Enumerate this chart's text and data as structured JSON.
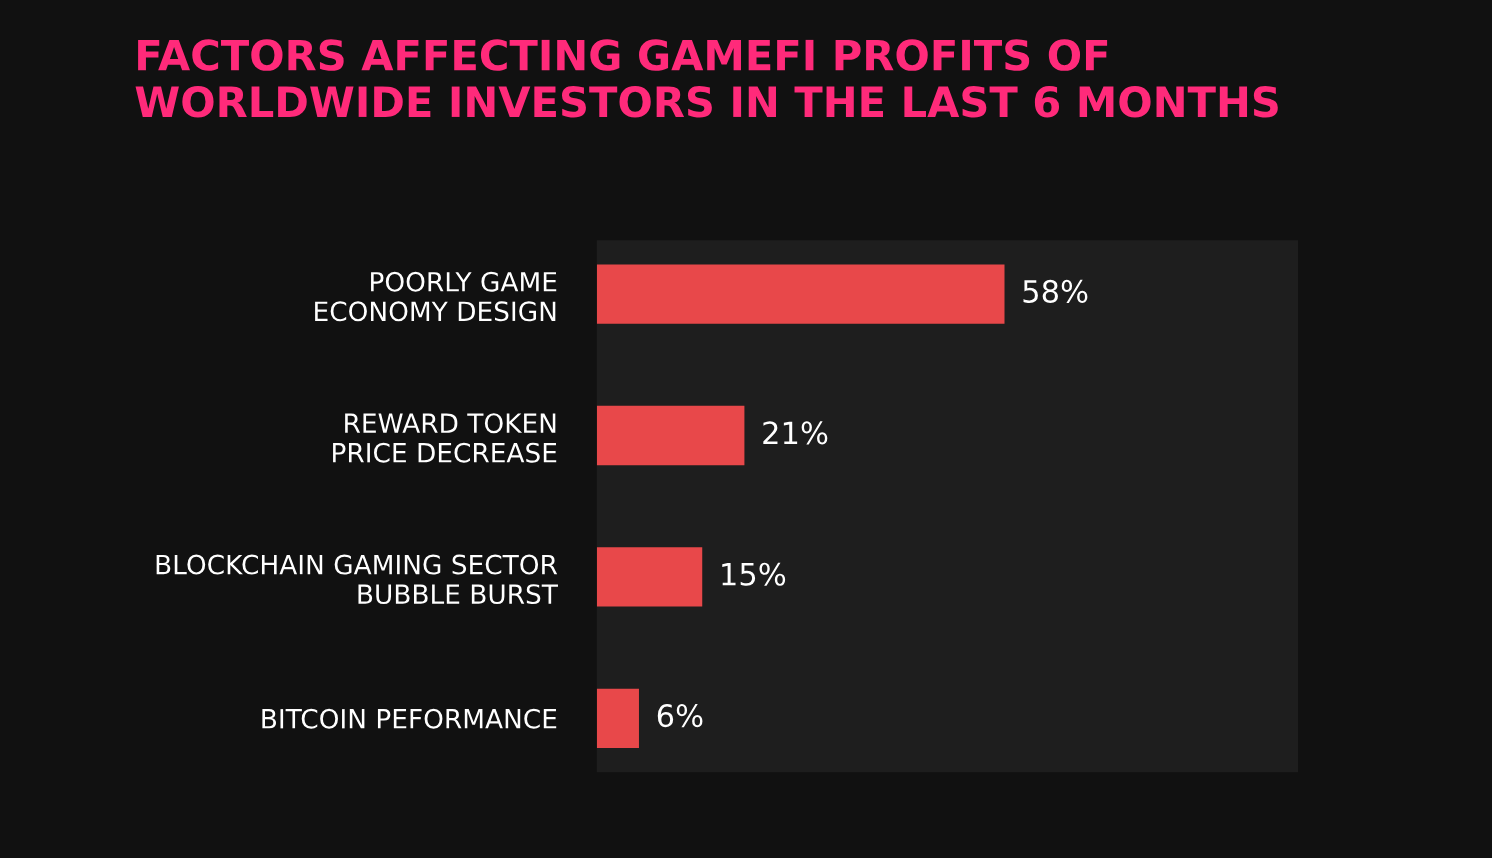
{
  "chart_data": {
    "type": "bar",
    "orientation": "horizontal",
    "title": "FACTORS AFFECTING GAMEFI PROFITS OF\nWORLDWIDE INVESTORS IN THE LAST 6 MONTHS",
    "categories": [
      "POORLY GAME\nECONOMY DESIGN",
      "REWARD TOKEN\nPRICE DECREASE",
      "BLOCKCHAIN GAMING SECTOR\nBUBBLE BURST",
      "BITCOIN PEFORMANCE"
    ],
    "values": [
      58,
      21,
      15,
      6
    ],
    "value_labels": [
      "58%",
      "21%",
      "15%",
      "6%"
    ],
    "color": "#e8484a",
    "grid": false,
    "legend": false
  }
}
